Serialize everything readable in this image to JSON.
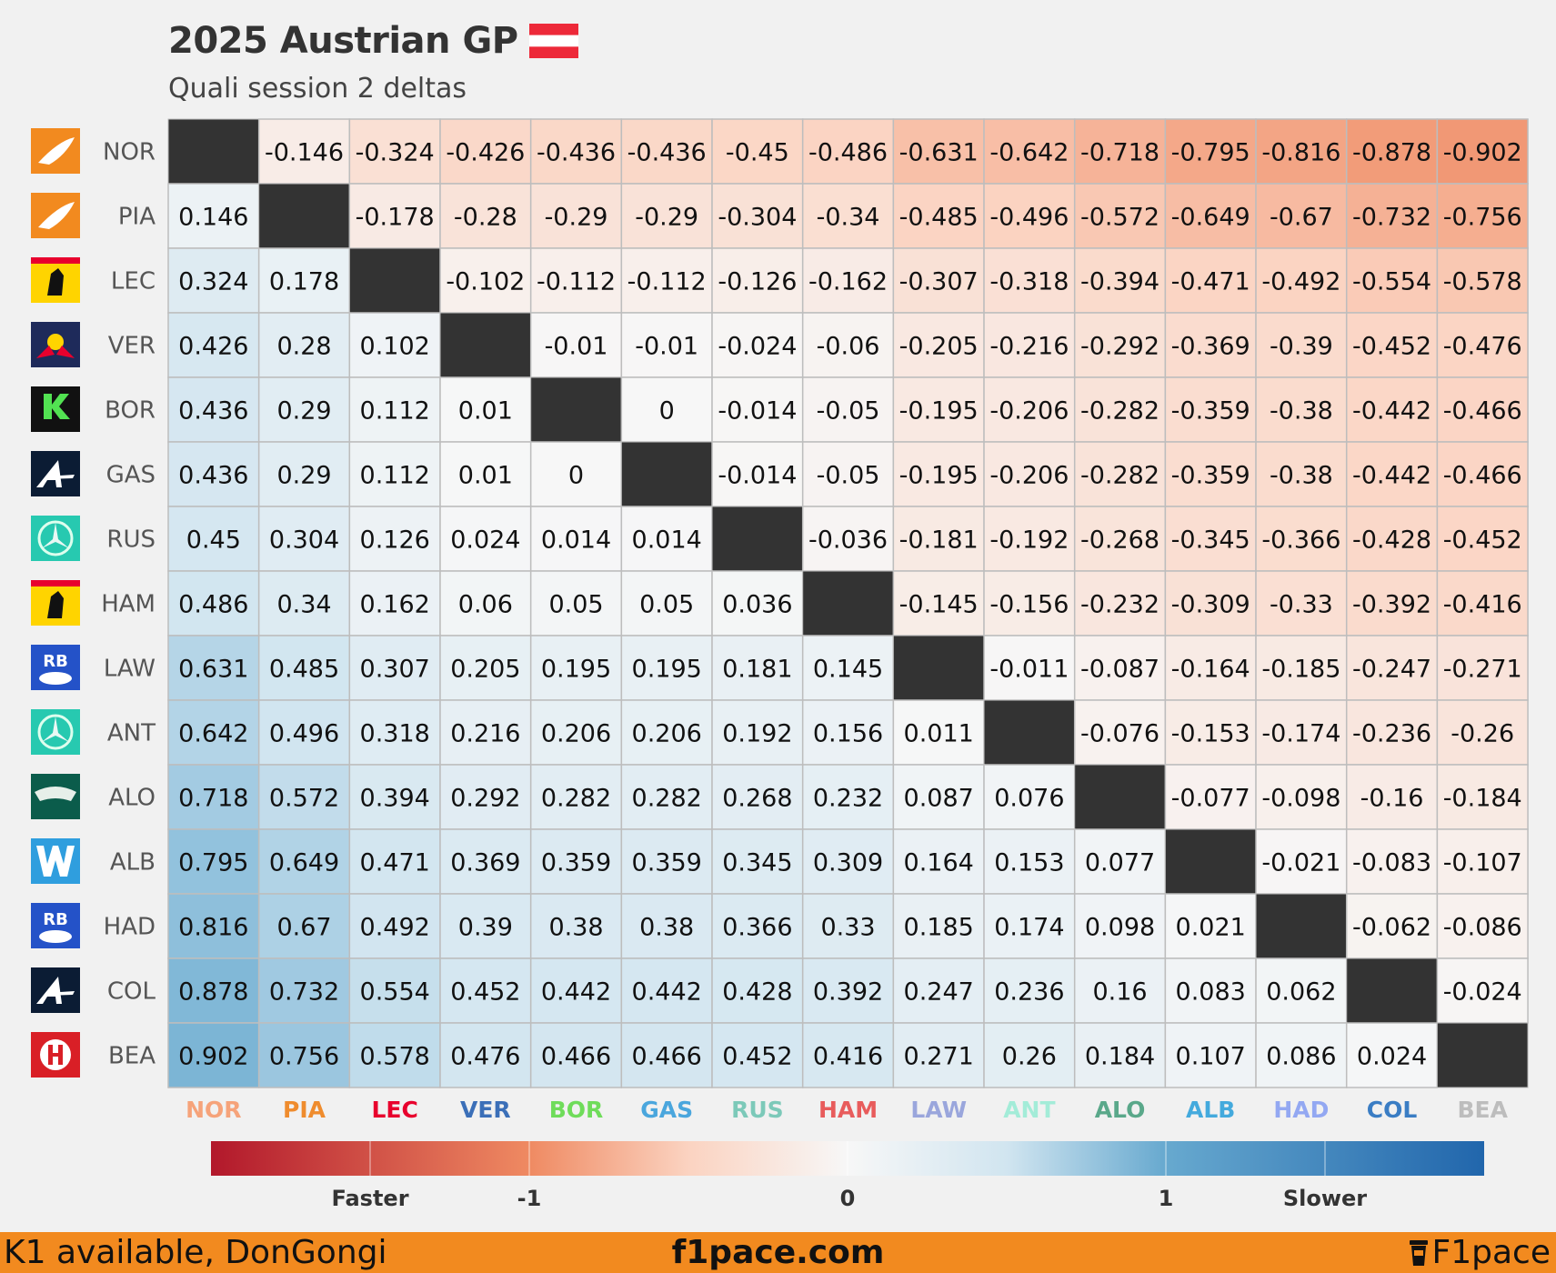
{
  "header": {
    "title": "2025 Austrian GP",
    "subtitle": "Quali session 2 deltas"
  },
  "footer": {
    "left": "K1 available, DonGongi",
    "center": "f1pace.com",
    "right": "F1pace"
  },
  "colors": {
    "faster": "#b2182b",
    "slower": "#2166ac",
    "neutral": "#f7f7f7",
    "diagonal": "#333333",
    "footer_bg": "#f28a1f",
    "flag_red": "#ed2939"
  },
  "chart_data": {
    "type": "heatmap",
    "title": "2025 Austrian GP",
    "subtitle": "Quali session 2 deltas",
    "drivers": [
      "NOR",
      "PIA",
      "LEC",
      "VER",
      "BOR",
      "GAS",
      "RUS",
      "HAM",
      "LAW",
      "ANT",
      "ALO",
      "ALB",
      "HAD",
      "COL",
      "BEA"
    ],
    "team_logos": [
      "mclaren-logo",
      "mclaren-logo",
      "ferrari-logo",
      "red-bull-logo",
      "sauber-logo",
      "alpine-logo",
      "mercedes-logo",
      "ferrari-logo",
      "racing-bulls-logo",
      "mercedes-logo",
      "aston-martin-logo",
      "williams-logo",
      "racing-bulls-logo",
      "alpine-logo",
      "haas-logo"
    ],
    "team_colors": [
      "#ff8000",
      "#ff8000",
      "#e8002d",
      "#3671c6",
      "#52e252",
      "#0093cc",
      "#27f4d2",
      "#e8002d",
      "#6692ff",
      "#27f4d2",
      "#229971",
      "#64c4ff",
      "#6692ff",
      "#0093cc",
      "#b6babd"
    ],
    "label_colors": [
      "#f6a37a",
      "#ef8c2e",
      "#e8002d",
      "#3b6fb8",
      "#6fdc5a",
      "#4aa6dd",
      "#7cc9b9",
      "#e85c5c",
      "#9aa6dc",
      "#a3ecd8",
      "#5aa88a",
      "#44aadd",
      "#93a8f2",
      "#3a7dc4",
      "#bdbdbd"
    ],
    "diagonal": "blank",
    "values": [
      [
        null,
        -0.146,
        -0.324,
        -0.426,
        -0.436,
        -0.436,
        -0.45,
        -0.486,
        -0.631,
        -0.642,
        -0.718,
        -0.795,
        -0.816,
        -0.878,
        -0.902
      ],
      [
        0.146,
        null,
        -0.178,
        -0.28,
        -0.29,
        -0.29,
        -0.304,
        -0.34,
        -0.485,
        -0.496,
        -0.572,
        -0.649,
        -0.67,
        -0.732,
        -0.756
      ],
      [
        0.324,
        0.178,
        null,
        -0.102,
        -0.112,
        -0.112,
        -0.126,
        -0.162,
        -0.307,
        -0.318,
        -0.394,
        -0.471,
        -0.492,
        -0.554,
        -0.578
      ],
      [
        0.426,
        0.28,
        0.102,
        null,
        -0.01,
        -0.01,
        -0.024,
        -0.06,
        -0.205,
        -0.216,
        -0.292,
        -0.369,
        -0.39,
        -0.452,
        -0.476
      ],
      [
        0.436,
        0.29,
        0.112,
        0.01,
        null,
        0,
        -0.014,
        -0.05,
        -0.195,
        -0.206,
        -0.282,
        -0.359,
        -0.38,
        -0.442,
        -0.466
      ],
      [
        0.436,
        0.29,
        0.112,
        0.01,
        0,
        null,
        -0.014,
        -0.05,
        -0.195,
        -0.206,
        -0.282,
        -0.359,
        -0.38,
        -0.442,
        -0.466
      ],
      [
        0.45,
        0.304,
        0.126,
        0.024,
        0.014,
        0.014,
        null,
        -0.036,
        -0.181,
        -0.192,
        -0.268,
        -0.345,
        -0.366,
        -0.428,
        -0.452
      ],
      [
        0.486,
        0.34,
        0.162,
        0.06,
        0.05,
        0.05,
        0.036,
        null,
        -0.145,
        -0.156,
        -0.232,
        -0.309,
        -0.33,
        -0.392,
        -0.416
      ],
      [
        0.631,
        0.485,
        0.307,
        0.205,
        0.195,
        0.195,
        0.181,
        0.145,
        null,
        -0.011,
        -0.087,
        -0.164,
        -0.185,
        -0.247,
        -0.271
      ],
      [
        0.642,
        0.496,
        0.318,
        0.216,
        0.206,
        0.206,
        0.192,
        0.156,
        0.011,
        null,
        -0.076,
        -0.153,
        -0.174,
        -0.236,
        -0.26
      ],
      [
        0.718,
        0.572,
        0.394,
        0.292,
        0.282,
        0.282,
        0.268,
        0.232,
        0.087,
        0.076,
        null,
        -0.077,
        -0.098,
        -0.16,
        -0.184
      ],
      [
        0.795,
        0.649,
        0.471,
        0.369,
        0.359,
        0.359,
        0.345,
        0.309,
        0.164,
        0.153,
        0.077,
        null,
        -0.021,
        -0.083,
        -0.107
      ],
      [
        0.816,
        0.67,
        0.492,
        0.39,
        0.38,
        0.38,
        0.366,
        0.33,
        0.185,
        0.174,
        0.098,
        0.021,
        null,
        -0.062,
        -0.086
      ],
      [
        0.878,
        0.732,
        0.554,
        0.452,
        0.442,
        0.442,
        0.428,
        0.392,
        0.247,
        0.236,
        0.16,
        0.083,
        0.062,
        null,
        -0.024
      ],
      [
        0.902,
        0.756,
        0.578,
        0.476,
        0.466,
        0.466,
        0.452,
        0.416,
        0.271,
        0.26,
        0.184,
        0.107,
        0.086,
        0.024,
        null
      ]
    ],
    "colorbar": {
      "range": [
        -2,
        2
      ],
      "ticks": [
        -1.5,
        -1,
        0,
        1,
        1.5
      ],
      "tick_labels": [
        "Faster",
        "-1",
        "0",
        "1",
        "Slower"
      ]
    },
    "grid": true
  }
}
